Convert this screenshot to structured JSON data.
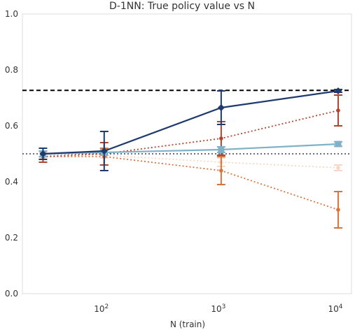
{
  "chart_data": {
    "type": "line",
    "title": "D-1NN: True policy value vs N",
    "xlabel": "N (train)",
    "ylabel": "",
    "xscale": "log",
    "xlim": [
      20,
      13000
    ],
    "ylim": [
      0.0,
      1.0
    ],
    "xticks": [
      {
        "value": 100,
        "base": "10",
        "exp": "2"
      },
      {
        "value": 1000,
        "base": "10",
        "exp": "3"
      },
      {
        "value": 10000,
        "base": "10",
        "exp": "4"
      }
    ],
    "yticks": [
      {
        "value": 0.0,
        "label": "0.0"
      },
      {
        "value": 0.2,
        "label": "0.2"
      },
      {
        "value": 0.4,
        "label": "0.4"
      },
      {
        "value": 0.6,
        "label": "0.6"
      },
      {
        "value": 0.8,
        "label": "0.8"
      },
      {
        "value": 1.0,
        "label": "1.0"
      }
    ],
    "grid": false,
    "reference_lines": [
      {
        "y": 0.727,
        "style": "dashed",
        "color": "#000000"
      },
      {
        "y": 0.5,
        "style": "dotted",
        "color": "#3b3b6e"
      }
    ],
    "series": [
      {
        "x": [
          30,
          100,
          1000,
          10000
        ],
        "y": [
          0.5,
          0.51,
          0.665,
          0.725
        ],
        "err": [
          0.02,
          0.07,
          0.06,
          0.005
        ],
        "color": "#1f3a6e",
        "style": "solid",
        "marker": "D",
        "alpha": 1.0
      },
      {
        "x": [
          30,
          100,
          1000,
          10000
        ],
        "y": [
          0.5,
          0.505,
          0.515,
          0.535
        ],
        "err": [
          0.01,
          0.01,
          0.01,
          0.008
        ],
        "color": "#7fb1c8",
        "style": "solid",
        "marker": "s",
        "alpha": 1.0
      },
      {
        "x": [
          30,
          100,
          1000,
          10000
        ],
        "y": [
          0.49,
          0.5,
          0.555,
          0.655
        ],
        "err": [
          0.02,
          0.04,
          0.06,
          0.055
        ],
        "color": "#b0452d",
        "style": "dotted",
        "marker": "o",
        "alpha": 1.0
      },
      {
        "x": [
          30,
          100,
          1000,
          10000
        ],
        "y": [
          0.49,
          0.49,
          0.44,
          0.3
        ],
        "err": [
          0.02,
          0.03,
          0.05,
          0.065
        ],
        "color": "#d9733b",
        "style": "dotted",
        "marker": "o",
        "alpha": 1.0
      },
      {
        "x": [
          30,
          100,
          1000,
          10000
        ],
        "y": [
          0.495,
          0.495,
          0.47,
          0.45
        ],
        "err": [
          0.01,
          0.01,
          0.015,
          0.01
        ],
        "color": "#f3b28a",
        "style": "dotted",
        "marker": "o",
        "alpha": 0.5
      }
    ]
  }
}
